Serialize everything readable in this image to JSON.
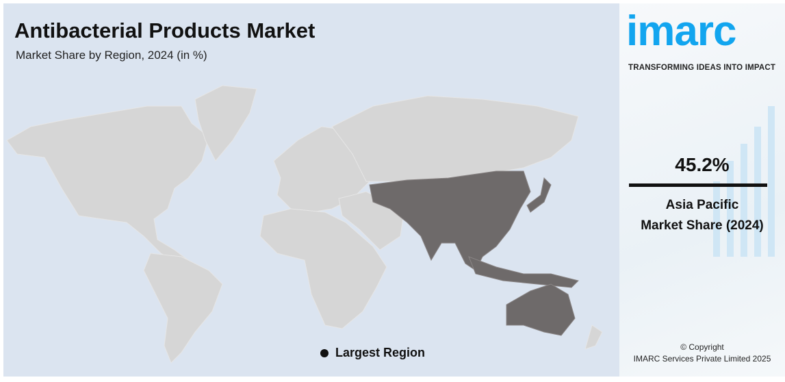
{
  "header": {
    "title": "Antibacterial Products Market",
    "subtitle": "Market Share by Region, 2024 (in %)"
  },
  "map": {
    "highlighted_region": "Asia Pacific",
    "colors": {
      "highlight": "#6e6a6a",
      "other": "#d6d6d6",
      "background": "#dbe4f0"
    }
  },
  "legend": {
    "label": "Largest Region",
    "marker_color": "#111111"
  },
  "sidebar": {
    "logo": "imarc",
    "tagline": "TRANSFORMING IDEAS INTO IMPACT",
    "value": "45.2%",
    "label_line1": "Asia Pacific",
    "label_line2": "Market Share (2024)",
    "copyright_line1": "© Copyright",
    "copyright_line2": "IMARC Services Private Limited 2025",
    "brand_color": "#12a5ef"
  }
}
